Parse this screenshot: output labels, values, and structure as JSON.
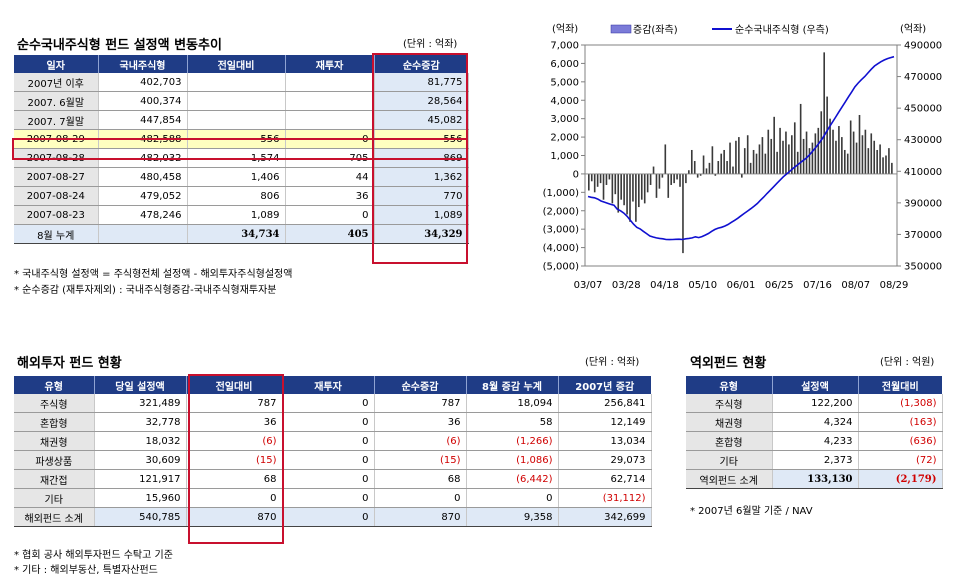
{
  "section1": {
    "title": "순수국내주식형 펀드 설정액 변동추이",
    "unit": "(단위 : 억좌)",
    "headers": [
      "일자",
      "국내주식형",
      "전일대비",
      "재투자",
      "순수증감"
    ],
    "rows": [
      [
        "2007년 이후",
        "402,703",
        "",
        "",
        "81,775"
      ],
      [
        "2007. 6월말",
        "400,374",
        "",
        "",
        "28,564"
      ],
      [
        "2007. 7월말",
        "447,854",
        "",
        "",
        "45,082"
      ],
      [
        "2007-08-29",
        "482,588",
        "556",
        "0",
        "556"
      ],
      [
        "2007-08-28",
        "482,032",
        "1,574",
        "705",
        "869"
      ],
      [
        "2007-08-27",
        "480,458",
        "1,406",
        "44",
        "1,362"
      ],
      [
        "2007-08-24",
        "479,052",
        "806",
        "36",
        "770"
      ],
      [
        "2007-08-23",
        "478,246",
        "1,089",
        "0",
        "1,089"
      ]
    ],
    "total": [
      "8월 누계",
      "",
      "34,734",
      "405",
      "34,329"
    ],
    "notes": [
      "* 국내주식형 설정액 = 주식형전체 설정액 - 해외투자주식형설정액",
      "* 순수증감 (재투자제외) : 국내주식형증감-국내주식형재투자분"
    ]
  },
  "chart_data": {
    "type": "bar+line",
    "left_axis_label": "(억좌)",
    "right_axis_label": "(억좌)",
    "legend": [
      "증감(좌측)",
      "순수국내주식형 (우측)"
    ],
    "series_colors": {
      "bars": "#3a3a3a",
      "line": "#1010d0"
    },
    "y_left": {
      "min": -5000,
      "max": 7000,
      "ticks": [
        "(5,000)",
        "(4,000)",
        "(3,000)",
        "(2,000)",
        "(1,000)",
        "0",
        "1,000",
        "2,000",
        "3,000",
        "4,000",
        "5,000",
        "6,000",
        "7,000"
      ]
    },
    "y_right": {
      "min": 350000,
      "max": 490000,
      "ticks": [
        "350000",
        "370000",
        "390000",
        "410000",
        "430000",
        "450000",
        "470000",
        "490000"
      ]
    },
    "x_ticks": [
      "03/07",
      "03/28",
      "04/18",
      "05/10",
      "06/01",
      "06/25",
      "07/16",
      "08/07",
      "08/29"
    ],
    "bars": [
      -900,
      -400,
      -1000,
      -700,
      -500,
      -1400,
      -600,
      -300,
      -1600,
      -1100,
      -2100,
      -1400,
      -1700,
      -2200,
      -2600,
      -1500,
      -2600,
      -1800,
      -1400,
      -1600,
      -1000,
      -600,
      400,
      -1300,
      -800,
      -200,
      1600,
      -1300,
      -600,
      -500,
      -300,
      -700,
      -4300,
      -500,
      200,
      1300,
      700,
      -200,
      -100,
      1000,
      300,
      600,
      1500,
      -100,
      700,
      1100,
      1300,
      700,
      1700,
      400,
      1800,
      2000,
      -200,
      1400,
      2100,
      600,
      1300,
      1100,
      1600,
      2000,
      1100,
      2400,
      1900,
      3100,
      1200,
      2500,
      1800,
      2300,
      1600,
      2100,
      2800,
      1200,
      3800,
      1900,
      2300,
      1400,
      1700,
      2200,
      2500,
      3400,
      6600,
      4200,
      3000,
      2400,
      1800,
      2600,
      2000,
      1300,
      1100,
      2900,
      2300,
      1700,
      3200,
      2100,
      2400,
      1400,
      2200,
      1800,
      1300,
      1600,
      900,
      1000,
      1400,
      600
    ],
    "line": [
      394000,
      393500,
      393200,
      392400,
      391200,
      390500,
      389800,
      389000,
      388500,
      386000,
      385000,
      383500,
      381500,
      379000,
      376500,
      374500,
      373500,
      372000,
      370500,
      369000,
      368400,
      367800,
      367500,
      367200,
      366800,
      366700,
      366800,
      366900,
      367000,
      366800,
      367200,
      367500,
      367800,
      368500,
      368000,
      368600,
      369600,
      370600,
      372000,
      373200,
      374000,
      374500,
      375300,
      376300,
      377600,
      378900,
      380200,
      381800,
      383300,
      384800,
      386300,
      387900,
      389600,
      391700,
      393700,
      395900,
      398000,
      400200,
      402300,
      404400,
      406500,
      408300,
      410000,
      411800,
      413400,
      415100,
      416700,
      418200,
      420300,
      422700,
      425200,
      427900,
      430800,
      434100,
      437600,
      440800,
      444100,
      447400,
      450600,
      453800,
      457100,
      460300,
      463500,
      465900,
      468000,
      470000,
      472300,
      474600,
      476700,
      478100,
      479400,
      480500,
      481400,
      482000,
      482600
    ]
  },
  "section2": {
    "title": "해외투자 펀드 현황",
    "unit": "(단위 : 억좌)",
    "headers": [
      "유형",
      "당일 설정액",
      "전일대비",
      "재투자",
      "순수증감",
      "8월 증감 누계",
      "2007년 증감"
    ],
    "rows": [
      [
        "주식형",
        "321,489",
        "787",
        "0",
        "787",
        "18,094",
        "256,841"
      ],
      [
        "혼합형",
        "32,778",
        "36",
        "0",
        "36",
        "58",
        "12,149"
      ],
      [
        "채권형",
        "18,032",
        "(6)",
        "0",
        "(6)",
        "(1,266)",
        "13,034"
      ],
      [
        "파생상품",
        "30,609",
        "(15)",
        "0",
        "(15)",
        "(1,086)",
        "29,073"
      ],
      [
        "재간접",
        "121,917",
        "68",
        "0",
        "68",
        "(6,442)",
        "62,714"
      ],
      [
        "기타",
        "15,960",
        "0",
        "0",
        "0",
        "0",
        "(31,112)"
      ]
    ],
    "total": [
      "해외펀드 소계",
      "540,785",
      "870",
      "0",
      "870",
      "9,358",
      "342,699"
    ],
    "notes": [
      "* 협회 공사 해외투자펀드 수탁고 기준",
      "* 기타 : 해외부동산, 특별자산펀드"
    ]
  },
  "section3": {
    "title": "역외펀드 현황",
    "unit": "(단위 : 억원)",
    "headers": [
      "유형",
      "설정액",
      "전월대비"
    ],
    "rows": [
      [
        "주식형",
        "122,200",
        "(1,308)"
      ],
      [
        "채권형",
        "4,324",
        "(163)"
      ],
      [
        "혼합형",
        "4,233",
        "(636)"
      ],
      [
        "기타",
        "2,373",
        "(72)"
      ]
    ],
    "total": [
      "역외펀드 소계",
      "133,130",
      "(2,179)"
    ],
    "notes": [
      "*  2007년 6월말 기준 / NAV"
    ]
  }
}
